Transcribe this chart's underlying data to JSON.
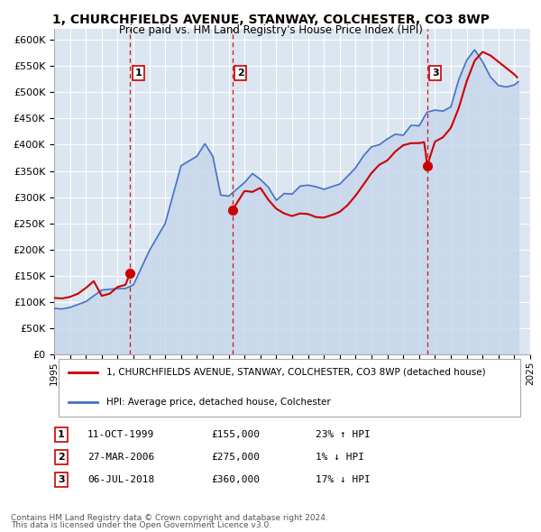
{
  "title": "1, CHURCHFIELDS AVENUE, STANWAY, COLCHESTER, CO3 8WP",
  "subtitle": "Price paid vs. HM Land Registry's House Price Index (HPI)",
  "legend_label_red": "1, CHURCHFIELDS AVENUE, STANWAY, COLCHESTER, CO3 8WP (detached house)",
  "legend_label_blue": "HPI: Average price, detached house, Colchester",
  "footer1": "Contains HM Land Registry data © Crown copyright and database right 2024.",
  "footer2": "This data is licensed under the Open Government Licence v3.0.",
  "sales": [
    {
      "num": 1,
      "date": "11-OCT-1999",
      "price": 155000,
      "pct": "23%",
      "dir": "↑",
      "year": 1999.78
    },
    {
      "num": 2,
      "date": "27-MAR-2006",
      "price": 275000,
      "pct": "1%",
      "dir": "↓",
      "year": 2006.23
    },
    {
      "num": 3,
      "date": "06-JUL-2018",
      "price": 360000,
      "pct": "17%",
      "dir": "↓",
      "year": 2018.51
    }
  ],
  "xlim": [
    1995,
    2025
  ],
  "ylim": [
    0,
    620000
  ],
  "yticks": [
    0,
    50000,
    100000,
    150000,
    200000,
    250000,
    300000,
    350000,
    400000,
    450000,
    500000,
    550000,
    600000
  ],
  "ytick_labels": [
    "£0",
    "£50K",
    "£100K",
    "£150K",
    "£200K",
    "£250K",
    "£300K",
    "£350K",
    "£400K",
    "£450K",
    "£500K",
    "£550K",
    "£600K"
  ],
  "xticks": [
    1995,
    1996,
    1997,
    1998,
    1999,
    2000,
    2001,
    2002,
    2003,
    2004,
    2005,
    2006,
    2007,
    2008,
    2009,
    2010,
    2011,
    2012,
    2013,
    2014,
    2015,
    2016,
    2017,
    2018,
    2019,
    2020,
    2021,
    2022,
    2023,
    2024,
    2025
  ],
  "bg_color": "#dce6f1",
  "grid_color": "#ffffff",
  "red_color": "#cc0000",
  "blue_color": "#4472c4",
  "blue_fill": "#c5d5ea"
}
